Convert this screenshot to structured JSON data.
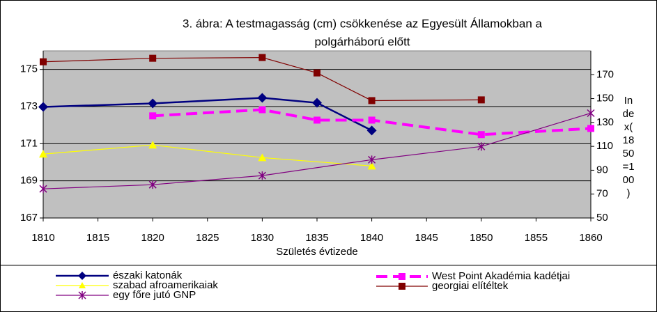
{
  "chart_data": {
    "type": "line",
    "title": "3. ábra: A testmagasság (cm) csökkenése az Egyesült Államokban a polgárháború előtt",
    "x_label": "Születés évtizede",
    "y2_label": "Index (1850=100)",
    "xlim": [
      1810,
      1860
    ],
    "xticks": [
      1810,
      1815,
      1820,
      1825,
      1830,
      1835,
      1840,
      1845,
      1850,
      1855,
      1860
    ],
    "ylim": [
      167,
      176
    ],
    "yticks": [
      167,
      169,
      171,
      173,
      175
    ],
    "y2lim": [
      50,
      190
    ],
    "y2ticks": [
      50,
      70,
      90,
      110,
      130,
      150,
      170
    ],
    "grid": true,
    "series": [
      {
        "name": "északi katonák",
        "color": "#000080",
        "marker": "diamond",
        "x": [
          1810,
          1820,
          1830,
          1835,
          1840
        ],
        "values": [
          172.98,
          173.17,
          173.47,
          173.2,
          171.71
        ]
      },
      {
        "name": "West Point Akadémia kadétjai",
        "color": "#ff00ff",
        "marker": "square",
        "dashed": true,
        "x": [
          1820,
          1830,
          1835,
          1840,
          1850,
          1860
        ],
        "values": [
          172.5,
          172.83,
          172.27,
          172.27,
          171.49,
          171.82
        ]
      },
      {
        "name": "szabad afroamerikaiak",
        "color": "#ffff00",
        "marker": "triangle",
        "x": [
          1810,
          1820,
          1830,
          1840
        ],
        "values": [
          170.44,
          170.93,
          170.25,
          169.8
        ]
      },
      {
        "name": "georgiai elítéltek",
        "color": "#800000",
        "marker": "square",
        "x": [
          1810,
          1820,
          1830,
          1835,
          1840,
          1850
        ],
        "values": [
          175.41,
          175.6,
          175.64,
          174.81,
          173.32,
          173.36
        ]
      },
      {
        "name": "egy főre jutó GNP",
        "color": "#800080",
        "marker": "star",
        "axis": "y2",
        "x": [
          1810,
          1820,
          1830,
          1840,
          1850,
          1860
        ],
        "values": [
          74.4,
          77.9,
          85.5,
          98.8,
          109.9,
          137.8
        ]
      }
    ]
  }
}
